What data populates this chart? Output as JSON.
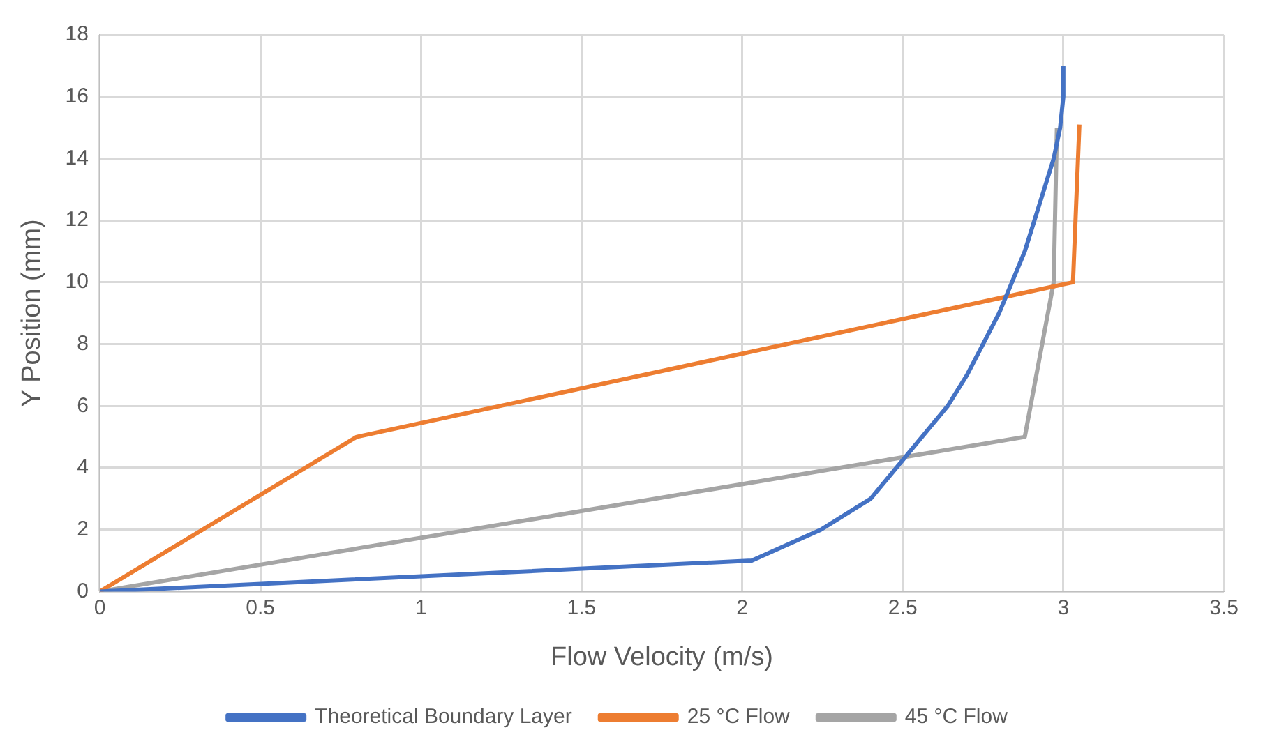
{
  "chart_data": {
    "type": "line",
    "xlabel": "Flow Velocity (m/s)",
    "ylabel": "Y Position (mm)",
    "xlim": [
      0,
      3.5
    ],
    "xticks": [
      0,
      0.5,
      1,
      1.5,
      2,
      2.5,
      3,
      3.5
    ],
    "ylim": [
      0,
      18
    ],
    "yticks": [
      0,
      2,
      4,
      6,
      8,
      10,
      12,
      14,
      16,
      18
    ],
    "grid": true,
    "legend": "bottom",
    "marker": "none",
    "line_style": "solid",
    "series": [
      {
        "name": "Theoretical Boundary Layer",
        "color": "#4472c4",
        "x": [
          0,
          2.03,
          2.245,
          2.4,
          2.48,
          2.56,
          2.64,
          2.7,
          2.75,
          2.8,
          2.84,
          2.88,
          2.91,
          2.94,
          2.97,
          2.99,
          3.0,
          3.0
        ],
        "values": [
          0,
          1,
          2,
          3,
          4,
          5,
          6,
          7,
          8,
          9,
          10,
          11,
          12,
          13,
          14,
          15,
          16,
          17
        ]
      },
      {
        "name": "25 °C Flow",
        "color": "#ed7d31",
        "x": [
          0,
          0.8,
          3.03,
          3.05
        ],
        "values": [
          0,
          5,
          10,
          15.1
        ]
      },
      {
        "name": "45 °C Flow",
        "color": "#a5a5a5",
        "x": [
          0,
          2.88,
          2.97,
          2.98
        ],
        "values": [
          0,
          5,
          10,
          15
        ]
      }
    ]
  }
}
